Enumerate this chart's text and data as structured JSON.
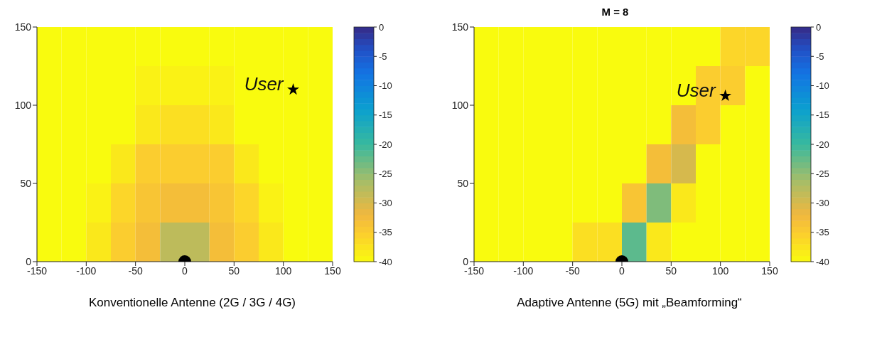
{
  "chart_data": [
    {
      "type": "heatmap",
      "cells": [
        [
          -40,
          -40,
          -40,
          -40,
          -40,
          -40,
          -40,
          -40,
          -40,
          -40,
          -40,
          -40
        ],
        [
          -40,
          -40,
          -40,
          -40,
          -39,
          -39,
          -39,
          -39,
          -40,
          -40,
          -40,
          -40
        ],
        [
          -40,
          -40,
          -40,
          -40,
          -38,
          -37,
          -37,
          -38,
          -40,
          -40,
          -40,
          -40
        ],
        [
          -40,
          -40,
          -40,
          -38,
          -35,
          -35,
          -35,
          -35,
          -38,
          -40,
          -40,
          -40
        ],
        [
          -40,
          -40,
          -39,
          -36,
          -34,
          -33,
          -33,
          -34,
          -36,
          -39,
          -40,
          -40
        ],
        [
          -40,
          -40,
          -38,
          -35,
          -33,
          -28,
          -28,
          -33,
          -35,
          -38,
          -40,
          -40
        ]
      ],
      "clim": [
        -40,
        0
      ],
      "cticks": [
        0,
        -5,
        -10,
        -15,
        -20,
        -25,
        -30,
        -35,
        -40
      ],
      "xlim": [
        -150,
        150
      ],
      "xticks": [
        -150,
        -100,
        -50,
        0,
        50,
        100,
        150
      ],
      "ylim": [
        0,
        150
      ],
      "yticks": [
        0,
        50,
        100,
        150
      ],
      "series": [
        {
          "type": "scatter",
          "x": [
            0
          ],
          "values": [
            0
          ],
          "marker": "circle",
          "color": "#000000"
        },
        {
          "type": "scatter",
          "x": [
            110
          ],
          "values": [
            110
          ],
          "marker": "star",
          "color": "#000000"
        }
      ],
      "annotations": [
        {
          "text": "User",
          "x": 110,
          "y": 110
        },
        "Konventionelle Antenne (2G / 3G / 4G)"
      ]
    },
    {
      "type": "heatmap",
      "title": "M = 8",
      "cells": [
        [
          -40,
          -40,
          -40,
          -40,
          -40,
          -40,
          -40,
          -40,
          -40,
          -40,
          -36,
          -36
        ],
        [
          -40,
          -40,
          -40,
          -40,
          -40,
          -40,
          -40,
          -40,
          -40,
          -35,
          -35,
          -40
        ],
        [
          -40,
          -40,
          -40,
          -40,
          -40,
          -40,
          -40,
          -40,
          -33,
          -35,
          -40,
          -40
        ],
        [
          -40,
          -40,
          -40,
          -40,
          -40,
          -40,
          -40,
          -33,
          -30,
          -40,
          -40,
          -40
        ],
        [
          -40,
          -40,
          -40,
          -40,
          -40,
          -40,
          -34,
          -24,
          -38,
          -40,
          -40,
          -40
        ],
        [
          -40,
          -40,
          -40,
          -40,
          -37,
          -37,
          -22,
          -38,
          -40,
          -40,
          -40,
          -40
        ]
      ],
      "clim": [
        -40,
        0
      ],
      "cticks": [
        0,
        -5,
        -10,
        -15,
        -20,
        -25,
        -30,
        -35,
        -40
      ],
      "xlim": [
        -150,
        150
      ],
      "xticks": [
        -150,
        -100,
        -50,
        0,
        50,
        100,
        150
      ],
      "ylim": [
        0,
        150
      ],
      "yticks": [
        0,
        50,
        100,
        150
      ],
      "series": [
        {
          "type": "scatter",
          "x": [
            0
          ],
          "values": [
            0
          ],
          "marker": "circle",
          "color": "#000000"
        },
        {
          "type": "scatter",
          "x": [
            105
          ],
          "values": [
            106
          ],
          "marker": "star",
          "color": "#000000"
        }
      ],
      "annotations": [
        {
          "text": "User",
          "x": 105,
          "y": 106
        },
        "Adaptive Antenne (5G) mit „Beamforming“"
      ]
    }
  ]
}
